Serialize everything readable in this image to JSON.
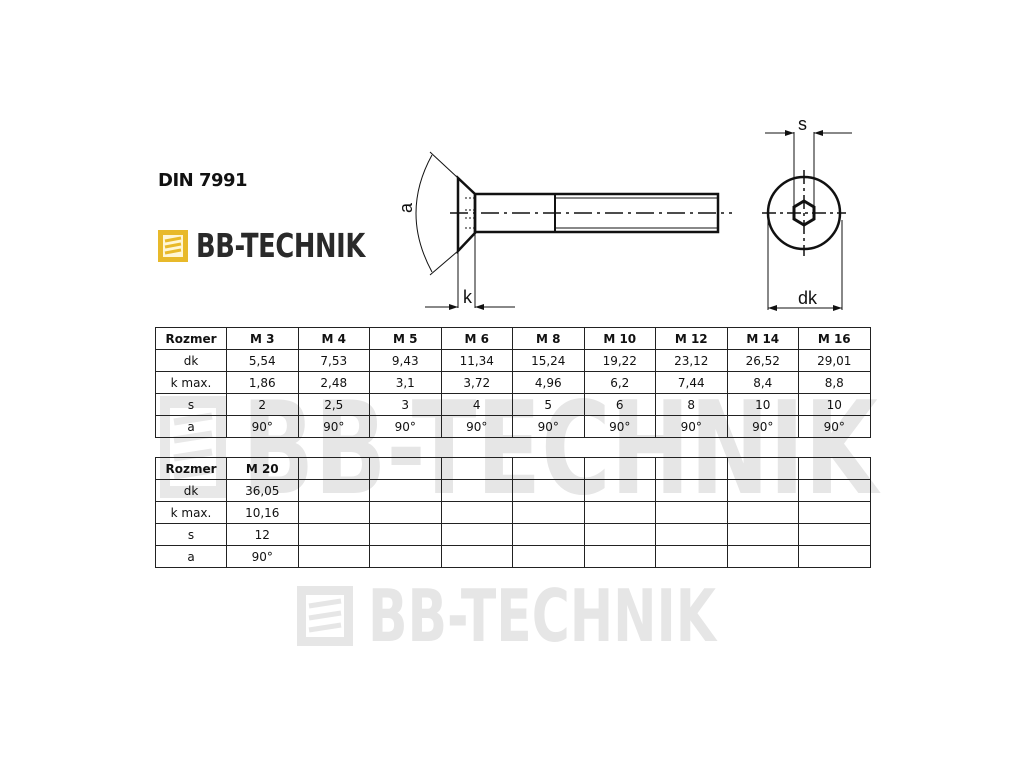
{
  "title": "DIN 7991",
  "logo": {
    "text": "BB-TECHNIK",
    "accent": "#e8b92a"
  },
  "watermark": "BB-TECHNIK",
  "drawing": {
    "labels": {
      "angle": "a",
      "head_height": "k",
      "socket": "s",
      "head_diameter": "dk"
    }
  },
  "table1": {
    "header": [
      "Rozmer",
      "M 3",
      "M 4",
      "M 5",
      "M 6",
      "M 8",
      "M 10",
      "M 12",
      "M 14",
      "M 16"
    ],
    "rows": [
      [
        "dk",
        "5,54",
        "7,53",
        "9,43",
        "11,34",
        "15,24",
        "19,22",
        "23,12",
        "26,52",
        "29,01"
      ],
      [
        "k max.",
        "1,86",
        "2,48",
        "3,1",
        "3,72",
        "4,96",
        "6,2",
        "7,44",
        "8,4",
        "8,8"
      ],
      [
        "s",
        "2",
        "2,5",
        "3",
        "4",
        "5",
        "6",
        "8",
        "10",
        "10"
      ],
      [
        "a",
        "90°",
        "90°",
        "90°",
        "90°",
        "90°",
        "90°",
        "90°",
        "90°",
        "90°"
      ]
    ]
  },
  "table2": {
    "header": [
      "Rozmer",
      "M 20",
      "",
      "",
      "",
      "",
      "",
      "",
      "",
      ""
    ],
    "rows": [
      [
        "dk",
        "36,05",
        "",
        "",
        "",
        "",
        "",
        "",
        "",
        ""
      ],
      [
        "k max.",
        "10,16",
        "",
        "",
        "",
        "",
        "",
        "",
        "",
        ""
      ],
      [
        "s",
        "12",
        "",
        "",
        "",
        "",
        "",
        "",
        "",
        ""
      ],
      [
        "a",
        "90°",
        "",
        "",
        "",
        "",
        "",
        "",
        "",
        ""
      ]
    ]
  }
}
